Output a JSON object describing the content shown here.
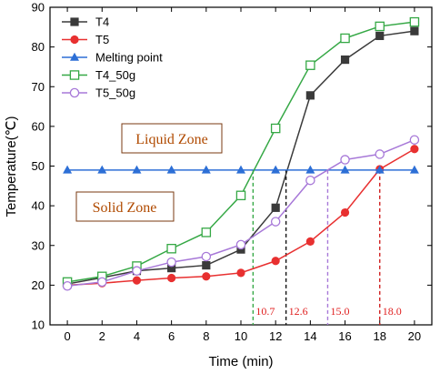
{
  "chart_data": {
    "type": "line",
    "xlabel": "Time (min)",
    "ylabel": "Temperature(℃)",
    "xlim": [
      -1,
      21
    ],
    "ylim": [
      10,
      90
    ],
    "xticks": [
      0,
      2,
      4,
      6,
      8,
      10,
      12,
      14,
      16,
      18,
      20
    ],
    "yticks": [
      10,
      20,
      30,
      40,
      50,
      60,
      70,
      80,
      90
    ],
    "grid": false,
    "legend_placement": "top-left",
    "x": [
      0,
      2,
      4,
      6,
      8,
      10,
      12,
      14,
      16,
      18,
      20
    ],
    "series": [
      {
        "name": "T4",
        "color": "#3a3a3a",
        "marker": "square-filled",
        "values": [
          20.3,
          21.9,
          23.6,
          24.3,
          25.0,
          29.0,
          39.5,
          67.8,
          76.8,
          82.8,
          84.0
        ]
      },
      {
        "name": "T5",
        "color": "#e83030",
        "marker": "circle-filled",
        "values": [
          20.0,
          20.5,
          21.2,
          21.8,
          22.2,
          23.1,
          26.1,
          31.0,
          38.3,
          49.2,
          54.3
        ]
      },
      {
        "name": "Melting point",
        "color": "#2d6fd6",
        "marker": "triangle-filled",
        "values": [
          49,
          49,
          49,
          49,
          49,
          49,
          49,
          49,
          49,
          49,
          49
        ]
      },
      {
        "name": "T4_50g",
        "color": "#35a845",
        "marker": "square-open",
        "values": [
          20.8,
          22.2,
          24.8,
          29.2,
          33.3,
          42.6,
          59.5,
          75.4,
          82.2,
          85.2,
          86.3
        ]
      },
      {
        "name": "T5_50g",
        "color": "#a778d8",
        "marker": "circle-open",
        "values": [
          19.8,
          20.8,
          23.6,
          25.8,
          27.2,
          30.2,
          36.0,
          46.4,
          51.6,
          53.0,
          56.6
        ]
      }
    ],
    "annotations": [
      {
        "text": "Liquid Zone",
        "x": 8.6,
        "y": 59
      },
      {
        "text": "Solid Zone",
        "x": 7.8,
        "y": 39.5
      }
    ],
    "markers": [
      {
        "x": 10.7,
        "label": "10.7",
        "color": "#35a845"
      },
      {
        "x": 12.6,
        "label": "12.6",
        "color": "#111111"
      },
      {
        "x": 15.0,
        "label": "15.0",
        "color": "#a778d8"
      },
      {
        "x": 18.0,
        "label": "18.0",
        "color": "#d02020"
      }
    ],
    "marker_line_top_y": 49
  }
}
